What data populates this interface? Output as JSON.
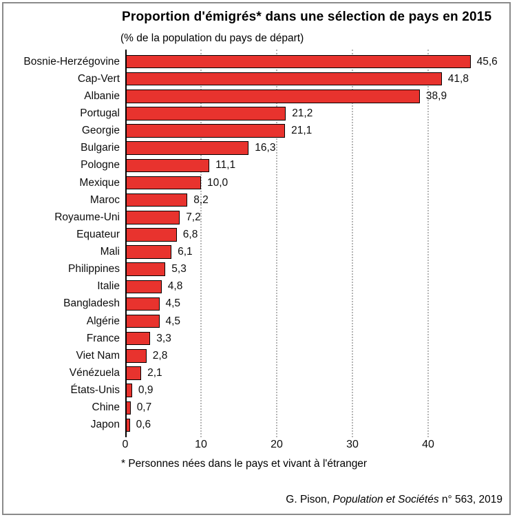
{
  "colors": {
    "bar_fill": "#e8332e",
    "bar_border": "#000000",
    "grid": "#b5b5b5",
    "axis": "#000000",
    "frame_border": "#8a8a8a"
  },
  "footnote": "* Personnes nées dans le pays et vivant à l'étranger",
  "source": {
    "prefix": "G. Pison, ",
    "italic": "Population et Sociétés",
    "suffix": " n° 563, 2019"
  },
  "chart_data": {
    "type": "bar",
    "orientation": "horizontal",
    "title": "Proportion d'émigrés* dans une sélection de pays en 2015",
    "subtitle": "(% de la population du pays de départ)",
    "xlabel": "",
    "ylabel": "",
    "xlim": [
      0,
      50
    ],
    "x_ticks": [
      0,
      10,
      20,
      30,
      40
    ],
    "x_tick_labels": [
      "0",
      "10",
      "20",
      "30",
      "40"
    ],
    "grid": "vertical-dotted",
    "legend": "none",
    "categories": [
      "Bosnie-Herzégovine",
      "Cap-Vert",
      "Albanie",
      "Portugal",
      "Georgie",
      "Bulgarie",
      "Pologne",
      "Mexique",
      "Maroc",
      "Royaume-Uni",
      "Equateur",
      "Mali",
      "Philippines",
      "Italie",
      "Bangladesh",
      "Algérie",
      "France",
      "Viet Nam",
      "Vénézuela",
      "États-Unis",
      "Chine",
      "Japon"
    ],
    "values": [
      45.6,
      41.8,
      38.9,
      21.2,
      21.1,
      16.3,
      11.1,
      10.0,
      8.2,
      7.2,
      6.8,
      6.1,
      5.3,
      4.8,
      4.5,
      4.5,
      3.3,
      2.8,
      2.1,
      0.9,
      0.7,
      0.6
    ],
    "value_labels": [
      "45,6",
      "41,8",
      "38,9",
      "21,2",
      "21,1",
      "16,3",
      "11,1",
      "10,0",
      "8,2",
      "7,2",
      "6,8",
      "6,1",
      "5,3",
      "4,8",
      "4,5",
      "4,5",
      "3,3",
      "2,8",
      "2,1",
      "0,9",
      "0,7",
      "0,6"
    ]
  }
}
